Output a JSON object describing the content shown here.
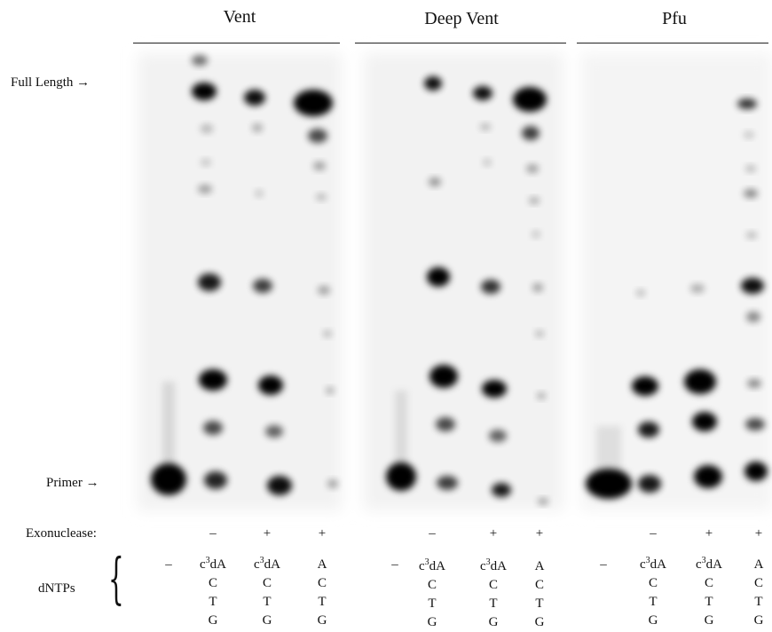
{
  "panels": [
    {
      "title": "Vent"
    },
    {
      "title": "Deep Vent"
    },
    {
      "title": "Pfu"
    }
  ],
  "markers": {
    "full_length": "Full Length →",
    "primer": "Primer →"
  },
  "rows": {
    "exonuclease_label": "Exonuclease:",
    "dntps_label": "dNTPs",
    "brace": "{"
  },
  "exonuclease": [
    "",
    "–",
    "+",
    "+"
  ],
  "dntps": {
    "none": "–",
    "c3": "3",
    "c_prefix": "c",
    "dA": "dA",
    "A": "A",
    "C": "C",
    "T": "T",
    "G": "G"
  },
  "colors": {
    "band": "#000000",
    "background": "#ffffff",
    "gel": "#f3f3f3"
  }
}
